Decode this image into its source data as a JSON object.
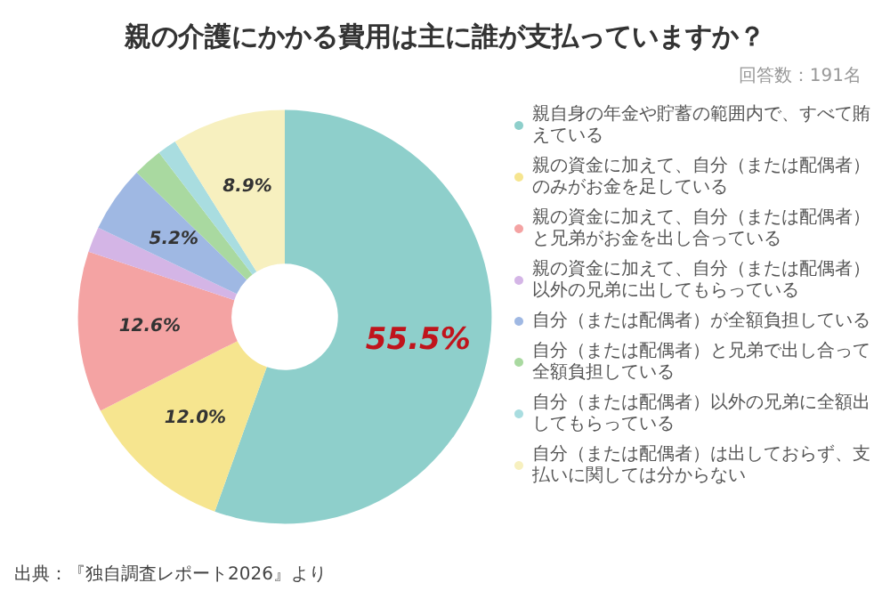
{
  "chart_data": {
    "type": "donut",
    "title": "親の介護にかかる費用は主に誰が支払っていますか？",
    "subtitle": "回答数：191名",
    "categories": [
      "親自身の年金や貯蓄の範囲内で、すべて賄えている",
      "親の資金に加えて、自分（または配偶者）のみがお金を足している",
      "親の資金に加えて、自分（または配偶者）と兄弟がお金を出し合っている",
      "親の資金に加えて、自分（または配偶者）以外の兄弟に出してもらっている",
      "自分（または配偶者）が全額負担している",
      "自分（または配偶者）と兄弟で出し合って全額負担している",
      "自分（または配偶者）以外の兄弟に全額出してもらっている",
      "自分（または配偶者）は出しておらず、支払いに関しては分からない"
    ],
    "values": [
      55.5,
      12.0,
      12.6,
      2.0,
      5.2,
      2.3,
      1.5,
      8.9
    ],
    "colors": [
      "#8ecfcb",
      "#f6e58f",
      "#f4a3a3",
      "#d4b5e6",
      "#9fb8e3",
      "#a9d9a0",
      "#a9dde0",
      "#f7f0bf"
    ],
    "value_labels": [
      "55.5%",
      "12.0%",
      "12.6%",
      null,
      "5.2%",
      null,
      null,
      "8.9%"
    ],
    "legend": "right",
    "annotations": [
      "出典：『独自調査レポート2026』より"
    ]
  }
}
